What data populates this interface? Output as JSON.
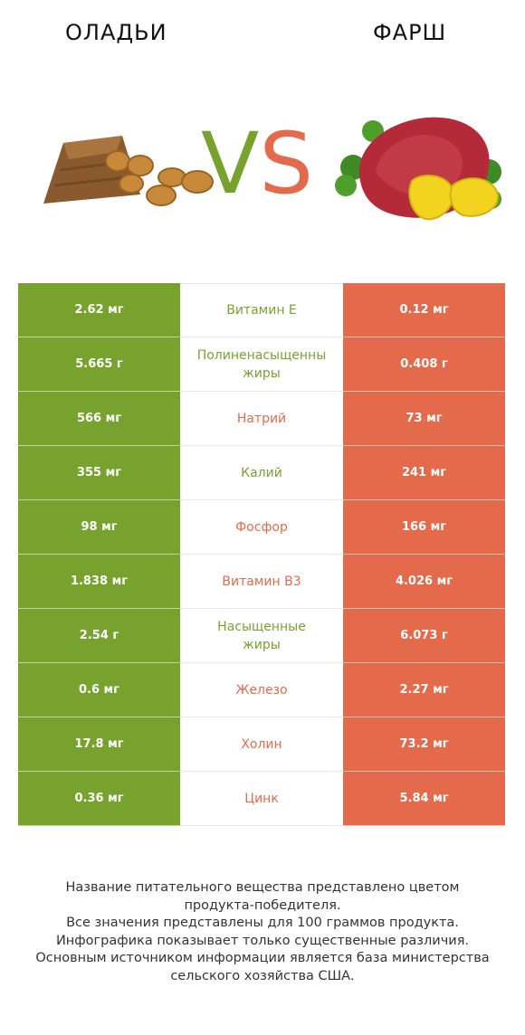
{
  "header": {
    "left_product": "ОЛАДЬИ",
    "right_product": "ФАРШ",
    "vs_v": "V",
    "vs_s": "S"
  },
  "colors": {
    "left": "#77a22e",
    "right": "#e36a4a"
  },
  "chart_data": {
    "type": "table",
    "columns": [
      "ОЛАДЬИ",
      "ФАРШ"
    ],
    "rows": [
      {
        "nutrient": "Витамин E",
        "lines": [
          "Витамин E"
        ],
        "left": "2.62 мг",
        "right": "0.12 мг",
        "winner": "left"
      },
      {
        "nutrient": "Полиненасыщенные жиры",
        "lines": [
          "Полиненасыщенны",
          "жиры"
        ],
        "left": "5.665 г",
        "right": "0.408 г",
        "winner": "left"
      },
      {
        "nutrient": "Натрий",
        "lines": [
          "Натрий"
        ],
        "left": "566 мг",
        "right": "73 мг",
        "winner": "right"
      },
      {
        "nutrient": "Калий",
        "lines": [
          "Калий"
        ],
        "left": "355 мг",
        "right": "241 мг",
        "winner": "left"
      },
      {
        "nutrient": "Фосфор",
        "lines": [
          "Фосфор"
        ],
        "left": "98 мг",
        "right": "166 мг",
        "winner": "right"
      },
      {
        "nutrient": "Витамин B3",
        "lines": [
          "Витамин B3"
        ],
        "left": "1.838 мг",
        "right": "4.026 мг",
        "winner": "right"
      },
      {
        "nutrient": "Насыщенные жиры",
        "lines": [
          "Насыщенные",
          "жиры"
        ],
        "left": "2.54 г",
        "right": "6.073 г",
        "winner": "left"
      },
      {
        "nutrient": "Железо",
        "lines": [
          "Железо"
        ],
        "left": "0.6 мг",
        "right": "2.27 мг",
        "winner": "right"
      },
      {
        "nutrient": "Холин",
        "lines": [
          "Холин"
        ],
        "left": "17.8 мг",
        "right": "73.2 мг",
        "winner": "right"
      },
      {
        "nutrient": "Цинк",
        "lines": [
          "Цинк"
        ],
        "left": "0.36 мг",
        "right": "5.84 мг",
        "winner": "right"
      }
    ]
  },
  "footnote": [
    "Название питательного вещества представлено цветом",
    "продукта-победителя.",
    "Все значения представлены для 100 граммов продукта.",
    "Инфографика показывает только существенные различия.",
    "Основным источником информации является база министерства",
    "сельского хозяйства США."
  ]
}
